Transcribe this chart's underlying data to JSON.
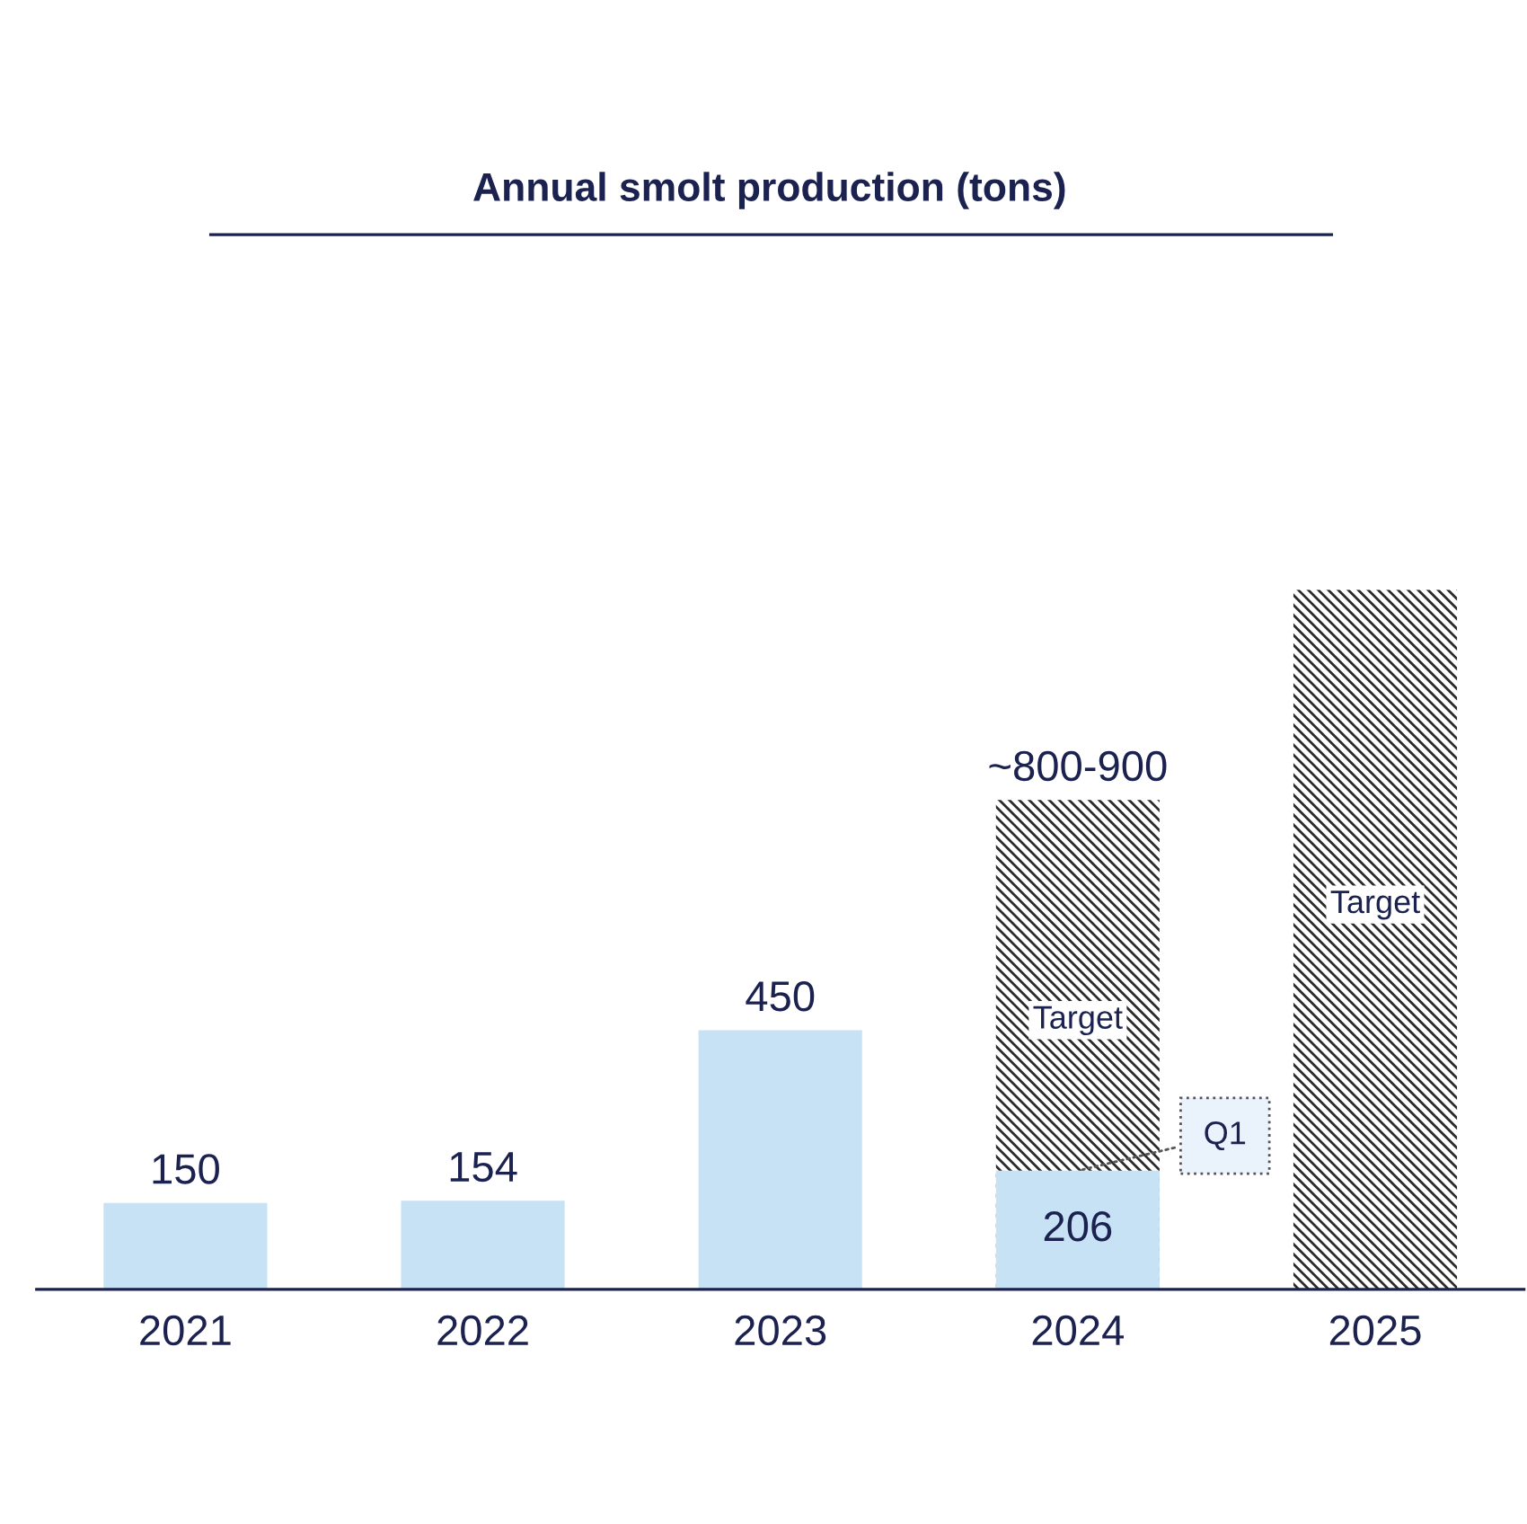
{
  "chart_data": {
    "type": "bar",
    "title": "Annual smolt production (tons)",
    "categories": [
      "2021",
      "2022",
      "2023",
      "2024",
      "2025"
    ],
    "series": [
      {
        "name": "Target",
        "color": "#2b2b2b",
        "values": [
          null,
          null,
          null,
          850,
          1215
        ],
        "value_labels": [
          null,
          null,
          null,
          "~800-900",
          null
        ]
      },
      {
        "color": "#c7e1f5",
        "values": [
          150,
          154,
          450,
          206,
          null
        ],
        "data_labels": true
      }
    ],
    "annotations": [
      {
        "text": "Q1",
        "x": "2024",
        "y": 206
      }
    ],
    "grid": false,
    "legend": false
  }
}
